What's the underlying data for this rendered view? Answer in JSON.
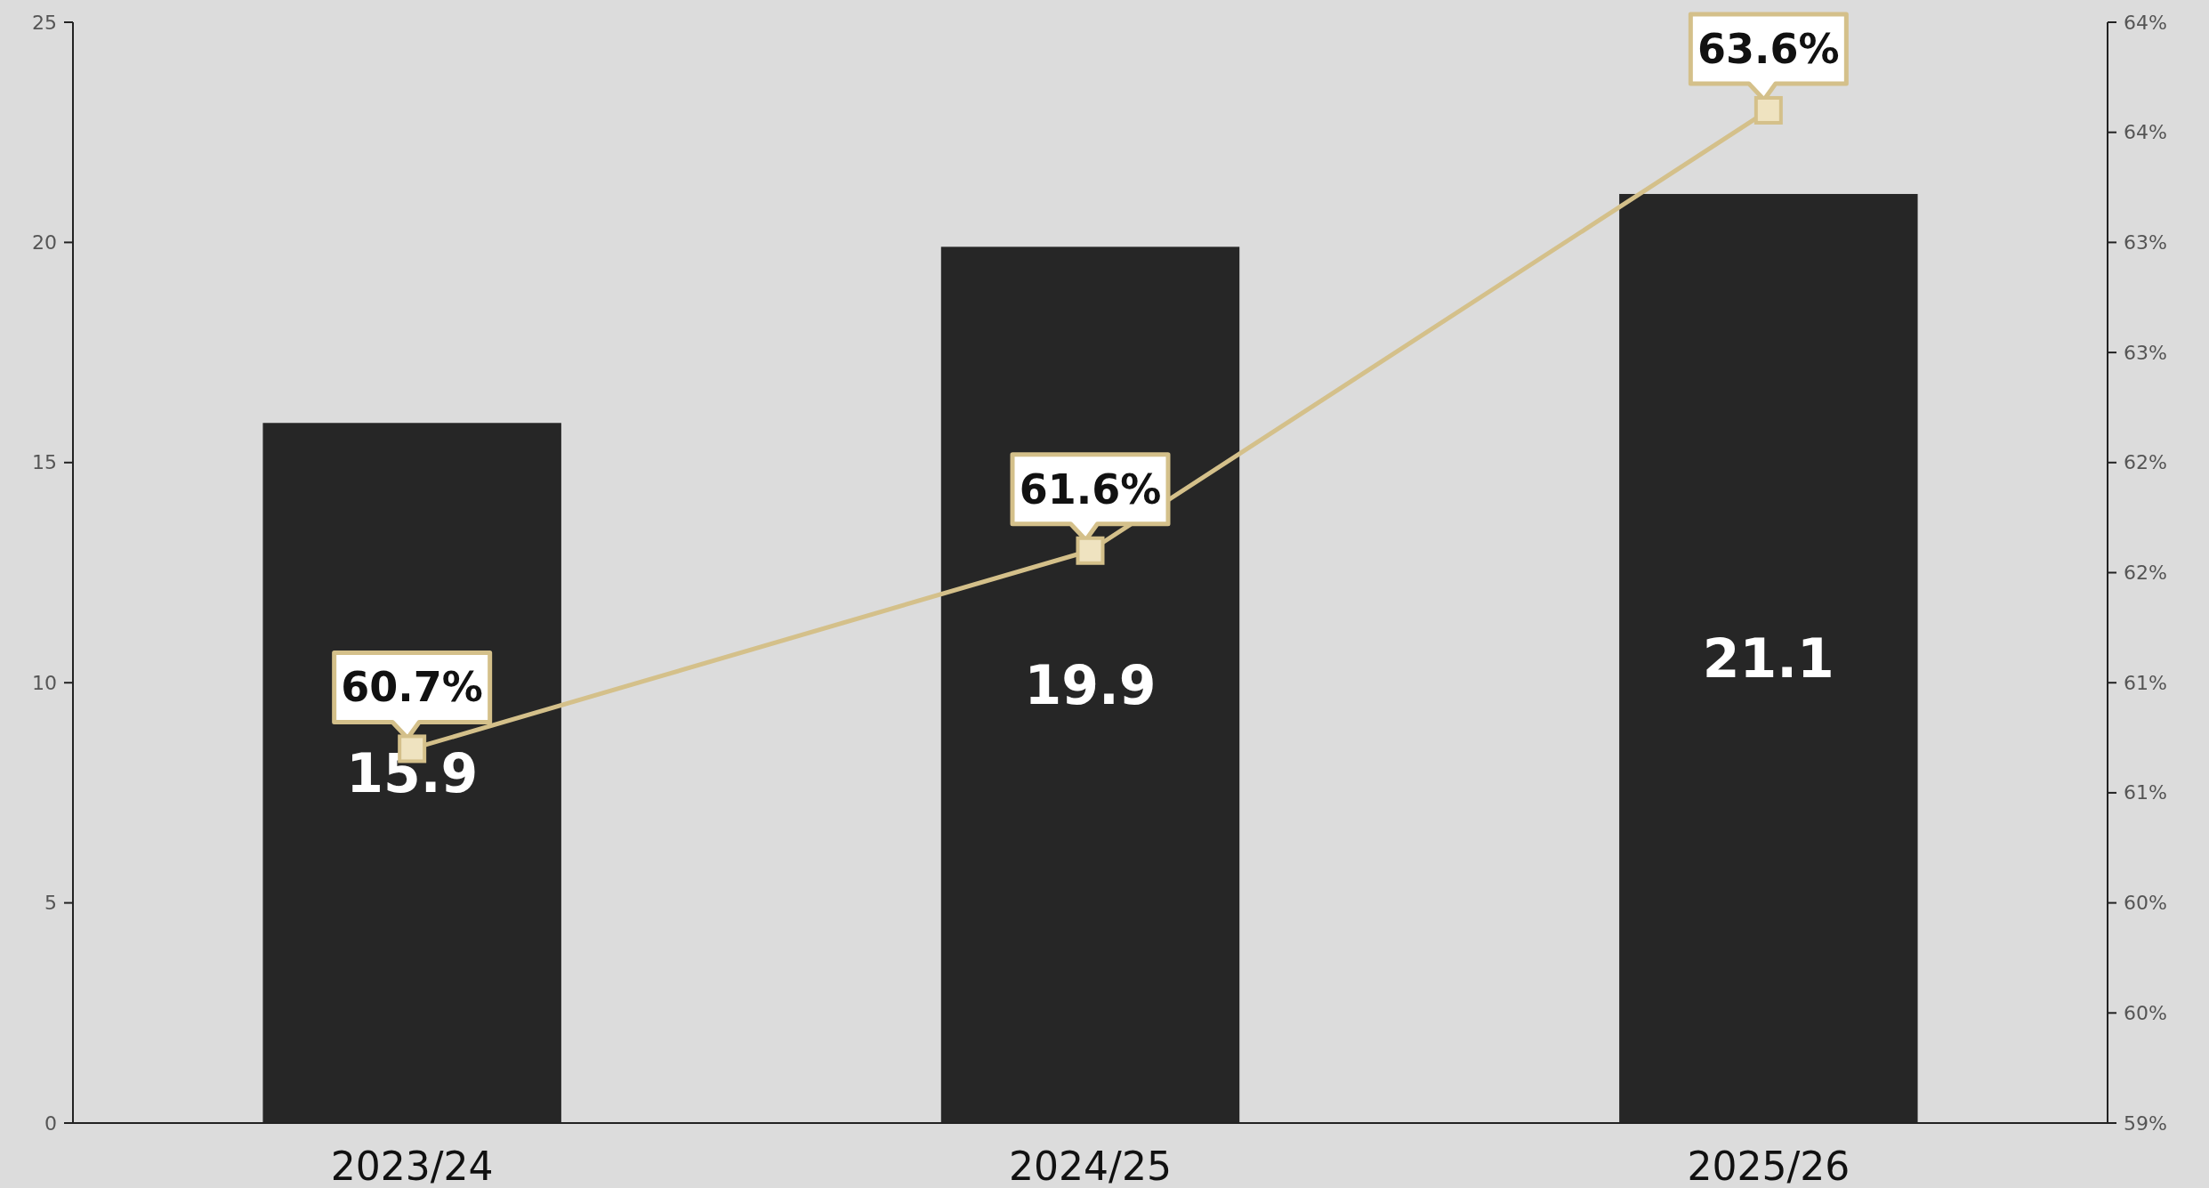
{
  "chart_data": {
    "type": "bar",
    "categories": [
      "2023/24",
      "2024/25",
      "2025/26"
    ],
    "series": [
      {
        "color": "#262626",
        "values": [
          15.9,
          19.9,
          21.1
        ],
        "value_labels": [
          "15.9",
          "19.9",
          "21.1"
        ]
      },
      {
        "type": "line",
        "axis": "y2",
        "color": "#d4c08a",
        "marker": "square",
        "values": [
          60.7,
          61.6,
          63.6
        ],
        "value_labels": [
          "60.7%",
          "61.6%",
          "63.6%"
        ]
      }
    ],
    "ylim": [
      0,
      25
    ],
    "yticks": [
      0,
      5,
      10,
      15,
      20,
      25
    ],
    "y2lim": [
      59,
      64
    ],
    "y2ticks": [
      {
        "value": 59,
        "label": "59%"
      },
      {
        "value": 59.5,
        "label": "60%"
      },
      {
        "value": 60,
        "label": "60%"
      },
      {
        "value": 60.5,
        "label": "61%"
      },
      {
        "value": 61,
        "label": "61%"
      },
      {
        "value": 61.5,
        "label": "62%"
      },
      {
        "value": 62,
        "label": "62%"
      },
      {
        "value": 62.5,
        "label": "63%"
      },
      {
        "value": 63,
        "label": "63%"
      },
      {
        "value": 63.5,
        "label": "64%"
      },
      {
        "value": 64,
        "label": "64%"
      }
    ],
    "grid": false
  }
}
